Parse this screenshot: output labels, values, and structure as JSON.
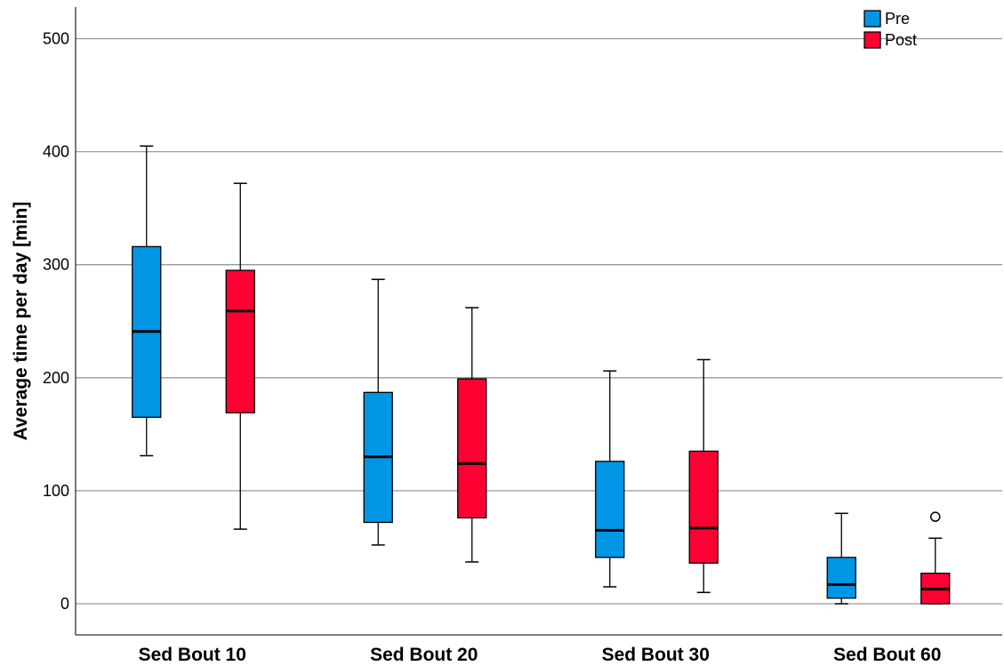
{
  "chart_data": {
    "type": "boxplot",
    "title": "",
    "xlabel": "",
    "ylabel": "Average time per day [min]",
    "ylim": [
      -27,
      527
    ],
    "yticks": [
      0,
      100,
      200,
      300,
      400,
      500
    ],
    "grid": "horizontal",
    "legend_position": "top-right",
    "categories": [
      "Sed Bout 10",
      "Sed Bout 20",
      "Sed Bout 30",
      "Sed Bout 60"
    ],
    "series": [
      {
        "name": "Pre",
        "color": "#0096e6",
        "boxes": [
          {
            "whisker_low": 131,
            "q1": 165,
            "median": 241,
            "q3": 316,
            "whisker_high": 405,
            "outliers": []
          },
          {
            "whisker_low": 52,
            "q1": 72,
            "median": 130,
            "q3": 187,
            "whisker_high": 287,
            "outliers": []
          },
          {
            "whisker_low": 15,
            "q1": 41,
            "median": 65,
            "q3": 126,
            "whisker_high": 206,
            "outliers": []
          },
          {
            "whisker_low": 0,
            "q1": 5,
            "median": 17,
            "q3": 41,
            "whisker_high": 80,
            "outliers": []
          }
        ]
      },
      {
        "name": "Post",
        "color": "#ff0033",
        "boxes": [
          {
            "whisker_low": 66,
            "q1": 169,
            "median": 259,
            "q3": 295,
            "whisker_high": 372,
            "outliers": []
          },
          {
            "whisker_low": 37,
            "q1": 76,
            "median": 124,
            "q3": 199,
            "whisker_high": 262,
            "outliers": []
          },
          {
            "whisker_low": 10,
            "q1": 36,
            "median": 67,
            "q3": 135,
            "whisker_high": 216,
            "outliers": []
          },
          {
            "whisker_low": 0,
            "q1": 0,
            "median": 13,
            "q3": 27,
            "whisker_high": 58,
            "outliers": [
              77
            ]
          }
        ]
      }
    ]
  }
}
